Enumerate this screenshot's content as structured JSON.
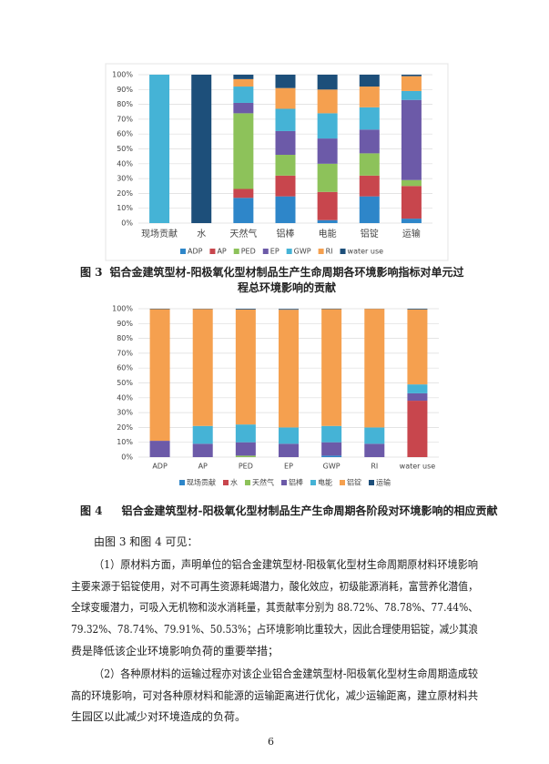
{
  "chart_data": [
    {
      "type": "bar",
      "stacked": true,
      "grid": true,
      "legend": "bottom",
      "categories": [
        "现场贡献",
        "水",
        "天然气",
        "铝棒",
        "电能",
        "铝锭",
        "运输"
      ],
      "ylim": [
        0,
        100
      ],
      "yticks": [
        {
          "value": 0,
          "label": "0%"
        },
        {
          "value": 10,
          "label": "10%"
        },
        {
          "value": 20,
          "label": "20%"
        },
        {
          "value": 30,
          "label": "30%"
        },
        {
          "value": 40,
          "label": "40%"
        },
        {
          "value": 50,
          "label": "50%"
        },
        {
          "value": 60,
          "label": "60%"
        },
        {
          "value": 70,
          "label": "70%"
        },
        {
          "value": 80,
          "label": "80%"
        },
        {
          "value": 90,
          "label": "90%"
        },
        {
          "value": 100,
          "label": "100%"
        }
      ],
      "series": [
        {
          "name": "ADP",
          "color": "#2e86c9",
          "values": [
            0,
            0,
            17,
            18,
            2,
            18,
            3
          ]
        },
        {
          "name": "AP",
          "color": "#c8464d",
          "values": [
            0,
            0,
            6,
            14,
            19,
            14,
            22
          ]
        },
        {
          "name": "PED",
          "color": "#8dc25a",
          "values": [
            0,
            0,
            51,
            14,
            19,
            15,
            4
          ]
        },
        {
          "name": "EP",
          "color": "#6c5aa8",
          "values": [
            0,
            0,
            7,
            16,
            17,
            16,
            54
          ]
        },
        {
          "name": "GWP",
          "color": "#45b3d6",
          "values": [
            100,
            0,
            11,
            15,
            17,
            15,
            6
          ]
        },
        {
          "name": "RI",
          "color": "#f5a04f",
          "values": [
            0,
            0,
            5,
            14,
            16,
            14,
            10
          ]
        },
        {
          "name": "water use",
          "color": "#1d4f7a",
          "values": [
            0,
            100,
            3,
            9,
            10,
            8,
            1
          ]
        }
      ]
    },
    {
      "type": "bar",
      "stacked": true,
      "grid": true,
      "legend": "bottom",
      "categories": [
        "ADP",
        "AP",
        "PED",
        "EP",
        "GWP",
        "RI",
        "water use"
      ],
      "ylim": [
        0,
        100
      ],
      "yticks": [
        {
          "value": 0,
          "label": "0%"
        },
        {
          "value": 10,
          "label": "10%"
        },
        {
          "value": 20,
          "label": "20%"
        },
        {
          "value": 30,
          "label": "30%"
        },
        {
          "value": 40,
          "label": "40%"
        },
        {
          "value": 50,
          "label": "50%"
        },
        {
          "value": 60,
          "label": "60%"
        },
        {
          "value": 70,
          "label": "70%"
        },
        {
          "value": 80,
          "label": "80%"
        },
        {
          "value": 90,
          "label": "90%"
        },
        {
          "value": 100,
          "label": "100%"
        }
      ],
      "series": [
        {
          "name": "现场贡献",
          "color": "#2e86c9",
          "values": [
            0,
            0,
            0,
            0,
            1,
            0,
            0
          ]
        },
        {
          "name": "水",
          "color": "#c8464d",
          "values": [
            0,
            0,
            0,
            0,
            0,
            0,
            38
          ]
        },
        {
          "name": "天然气",
          "color": "#8dc25a",
          "values": [
            0,
            0,
            1,
            0,
            0,
            0,
            0
          ]
        },
        {
          "name": "铝棒",
          "color": "#6c5aa8",
          "values": [
            11,
            9,
            9,
            9,
            9,
            9,
            5
          ]
        },
        {
          "name": "电能",
          "color": "#45b3d6",
          "values": [
            0,
            12,
            12,
            11,
            11,
            11,
            6
          ]
        },
        {
          "name": "铝锭",
          "color": "#f5a04f",
          "values": [
            88.72,
            78.78,
            77.44,
            79.32,
            78.74,
            79.91,
            50.53
          ]
        },
        {
          "name": "运输",
          "color": "#1d4f7a",
          "values": [
            0.3,
            0.2,
            0.5,
            0.5,
            0.3,
            0.1,
            0.5
          ]
        }
      ]
    }
  ],
  "captions": [
    {
      "label": "图 3",
      "text": "铝合金建筑型材-阳极氧化型材制品生产生命周期各环境影响指标对单元过程总环境影响的贡献"
    },
    {
      "label": "图 4",
      "text": "铝合金建筑型材-阳极氧化型材制品生产生命周期各阶段对环境影响的相应贡献"
    }
  ],
  "paragraphs": [
    {
      "lines": [
        "由图 3 和图 4 可见："
      ]
    },
    {
      "lines": [
        "（1）原材料方面，声明单位的铝合金建筑型材-阳极氧化型材生命周期原材料环境影响",
        "主要来源于铝锭使用，对不可再生资源耗竭潜力，酸化效应，初级能源消耗，富营养化潜值，",
        "全球变暖潜力，可吸入无机物和淡水消耗量，其贡献率分别为 88.72%、78.78%、77.44%、",
        "79.32%、78.74%、79.91%、50.53%；占环境影响比重较大，因此合理使用铝锭，减少其浪",
        "费是降低该企业环境影响负荷的重要举措；"
      ]
    },
    {
      "lines": [
        "（2）各种原材料的运输过程亦对该企业铝合金建筑型材-阳极氧化型材生命周期造成较",
        "高的环境影响，可对各种原材料和能源的运输距离进行优化，减少运输距离，建立原材料共",
        "生园区以此减少对环境造成的负荷。"
      ]
    }
  ],
  "page_number": "6"
}
